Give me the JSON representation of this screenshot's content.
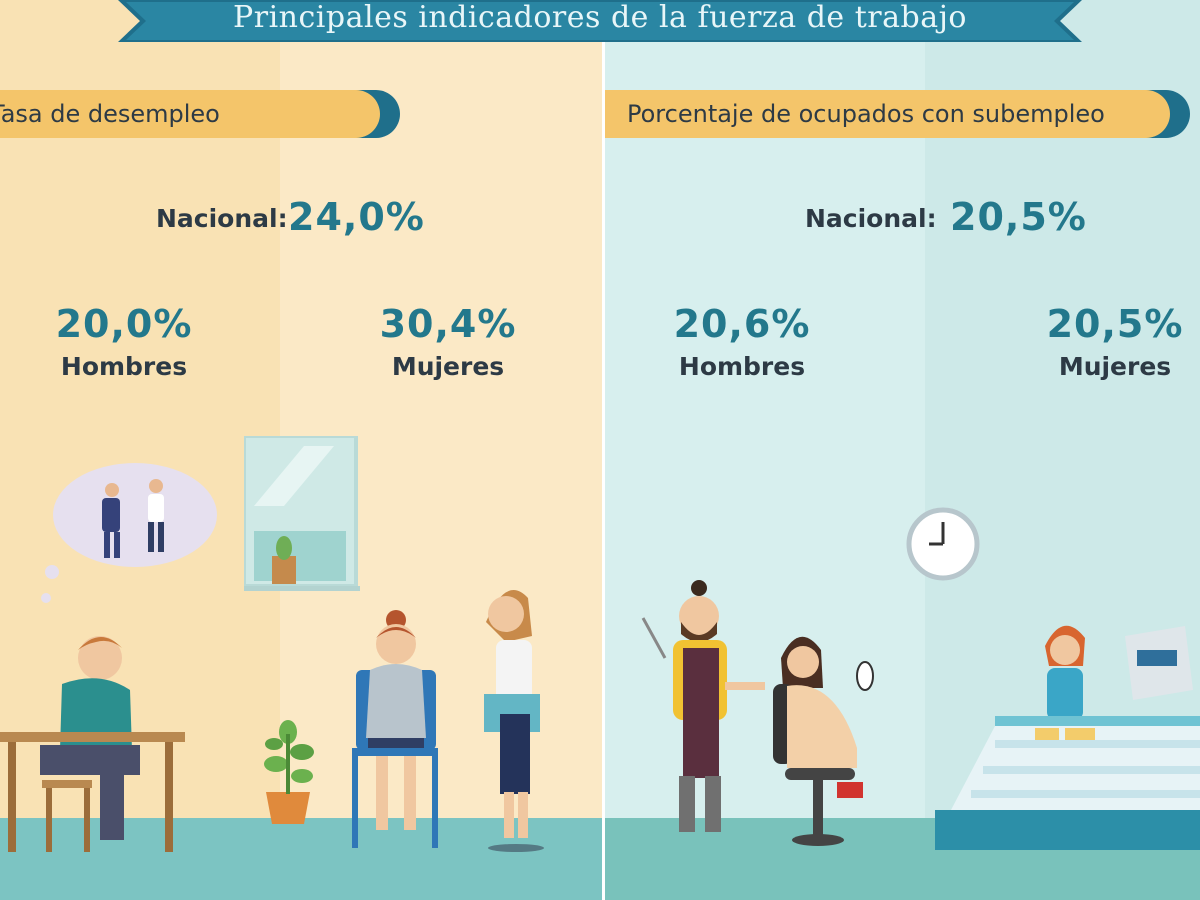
{
  "title": "Principales indicadores de la fuerza de trabajo",
  "left": {
    "ribbon": "Tasa de desempleo",
    "national_label": "Nacional:",
    "national_value": "24,0%",
    "men_value": "20,0%",
    "men_label": "Hombres",
    "women_value": "30,4%",
    "women_label": "Mujeres"
  },
  "right": {
    "ribbon": "Porcentaje de ocupados con subempleo",
    "national_label": "Nacional:",
    "national_value": "20,5%",
    "men_value": "20,6%",
    "men_label": "Hombres",
    "women_value": "20,5%",
    "women_label": "Mujeres"
  },
  "colors": {
    "accent": "#23788c",
    "ribbon": "#f4c56a",
    "banner": "#1f6f8b",
    "left_bg": "#fbe9c6",
    "right_bg": "#d7efee"
  }
}
